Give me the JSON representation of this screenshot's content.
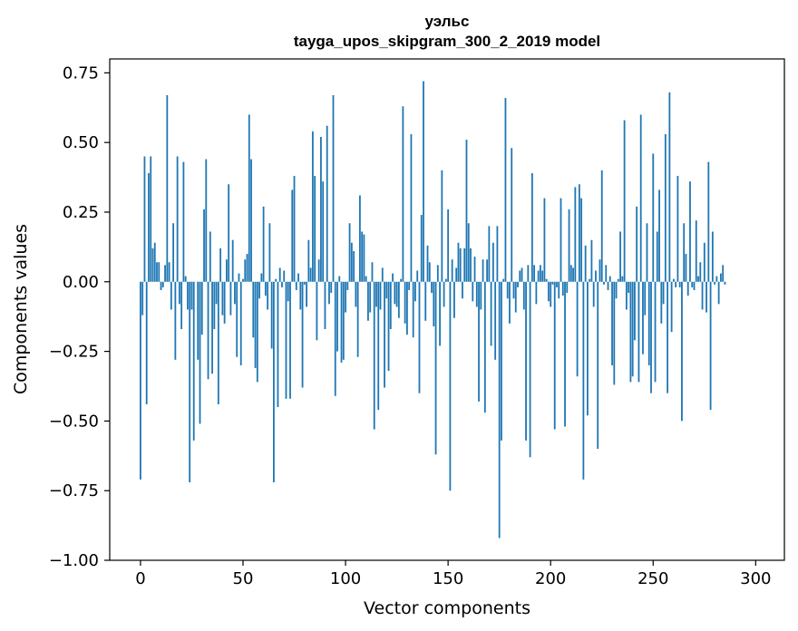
{
  "chart_data": {
    "type": "bar",
    "title": "уэльс",
    "subtitle": "tayga_upos_skipgram_300_2_2019 model",
    "xlabel": "Vector components",
    "ylabel": "Components values",
    "xlim": [
      -15,
      314
    ],
    "ylim": [
      -1.0,
      0.8
    ],
    "xticks": [
      0,
      50,
      100,
      150,
      200,
      250,
      300
    ],
    "xtick_labels": [
      "0",
      "50",
      "100",
      "150",
      "200",
      "250",
      "300"
    ],
    "yticks": [
      -1.0,
      -0.75,
      -0.5,
      -0.25,
      0.0,
      0.25,
      0.5,
      0.75
    ],
    "ytick_labels": [
      "−1.00",
      "−0.75",
      "−0.50",
      "−0.25",
      "0.00",
      "0.25",
      "0.50",
      "0.75"
    ],
    "grid": false,
    "bar_color": "#1f77b4",
    "values": [
      -0.71,
      -0.12,
      0.45,
      -0.44,
      0.39,
      0.45,
      0.12,
      0.14,
      0.07,
      0.07,
      -0.03,
      -0.02,
      0.06,
      0.67,
      0.07,
      -0.1,
      0.21,
      -0.28,
      0.45,
      -0.08,
      -0.17,
      0.43,
      0.02,
      -0.1,
      -0.72,
      -0.1,
      -0.57,
      0.0,
      -0.28,
      -0.51,
      -0.19,
      0.26,
      0.44,
      -0.35,
      0.18,
      -0.33,
      -0.17,
      -0.08,
      -0.44,
      0.12,
      -0.12,
      -0.15,
      0.08,
      0.35,
      -0.12,
      0.15,
      -0.08,
      -0.27,
      0.03,
      -0.3,
      0.01,
      0.08,
      0.1,
      0.6,
      0.44,
      -0.2,
      -0.31,
      -0.36,
      -0.06,
      0.03,
      0.27,
      -0.05,
      -0.1,
      0.21,
      -0.24,
      -0.72,
      0.01,
      -0.45,
      0.05,
      -0.02,
      0.04,
      -0.42,
      -0.07,
      -0.42,
      0.33,
      0.38,
      -0.03,
      0.03,
      -0.1,
      -0.38,
      -0.01,
      -0.09,
      0.15,
      0.05,
      0.54,
      0.38,
      -0.21,
      0.08,
      0.52,
      0.36,
      -0.17,
      0.56,
      -0.08,
      -0.04,
      0.67,
      -0.41,
      -0.25,
      0.02,
      -0.29,
      -0.28,
      -0.11,
      -0.03,
      0.21,
      0.14,
      0.11,
      -0.09,
      -0.27,
      0.31,
      0.18,
      0.17,
      0.02,
      -0.14,
      -0.11,
      0.07,
      -0.53,
      -0.09,
      -0.46,
      -0.1,
      0.05,
      -0.38,
      -0.06,
      -0.32,
      -0.17,
      0.03,
      -0.08,
      -0.09,
      -0.13,
      0.01,
      0.63,
      -0.15,
      -0.19,
      -0.03,
      0.53,
      -0.2,
      -0.07,
      0.04,
      -0.4,
      0.24,
      0.72,
      -0.14,
      0.13,
      0.07,
      -0.04,
      -0.16,
      -0.62,
      0.06,
      -0.23,
      0.4,
      -0.09,
      0.01,
      0.26,
      -0.75,
      0.08,
      -0.13,
      0.05,
      0.14,
      0.12,
      -0.06,
      0.12,
      0.51,
      0.21,
      0.12,
      -0.07,
      0.09,
      -0.09,
      -0.43,
      -0.1,
      0.08,
      -0.47,
      0.08,
      0.2,
      -0.23,
      0.14,
      -0.28,
      0.2,
      -0.92,
      -0.57,
      0.01,
      0.66,
      -0.06,
      -0.15,
      0.48,
      -0.06,
      -0.11,
      -0.02,
      0.04,
      0.05,
      -0.1,
      -0.57,
      0.06,
      -0.63,
      0.39,
      0.06,
      -0.08,
      0.04,
      0.06,
      0.04,
      0.3,
      0.01,
      -0.07,
      -0.09,
      -0.01,
      -0.53,
      -0.02,
      -0.06,
      0.3,
      -0.05,
      -0.52,
      -0.04,
      0.26,
      0.06,
      0.05,
      0.34,
      -0.34,
      0.35,
      0.3,
      -0.71,
      0.13,
      -0.48,
      0.01,
      0.15,
      -0.09,
      0.04,
      -0.6,
      0.08,
      0.4,
      -0.01,
      0.06,
      -0.03,
      0.02,
      -0.3,
      -0.37,
      -0.06,
      0.01,
      0.18,
      0.02,
      0.58,
      -0.1,
      -0.04,
      -0.36,
      -0.34,
      -0.21,
      0.27,
      -0.36,
      0.6,
      -0.26,
      -0.12,
      0.21,
      -0.3,
      -0.4,
      0.46,
      -0.36,
      0.18,
      0.33,
      -0.15,
      -0.08,
      0.53,
      -0.4,
      0.68,
      -0.18,
      0.01,
      -0.02,
      0.38,
      -0.02,
      -0.5,
      0.21,
      0.1,
      -0.05,
      0.36,
      -0.02,
      -0.03,
      0.22,
      0.02,
      0.07,
      -0.1,
      0.14,
      -0.11,
      0.43,
      -0.46,
      0.18,
      -0.01,
      0.02,
      -0.08,
      0.03,
      0.06,
      -0.01
    ]
  }
}
